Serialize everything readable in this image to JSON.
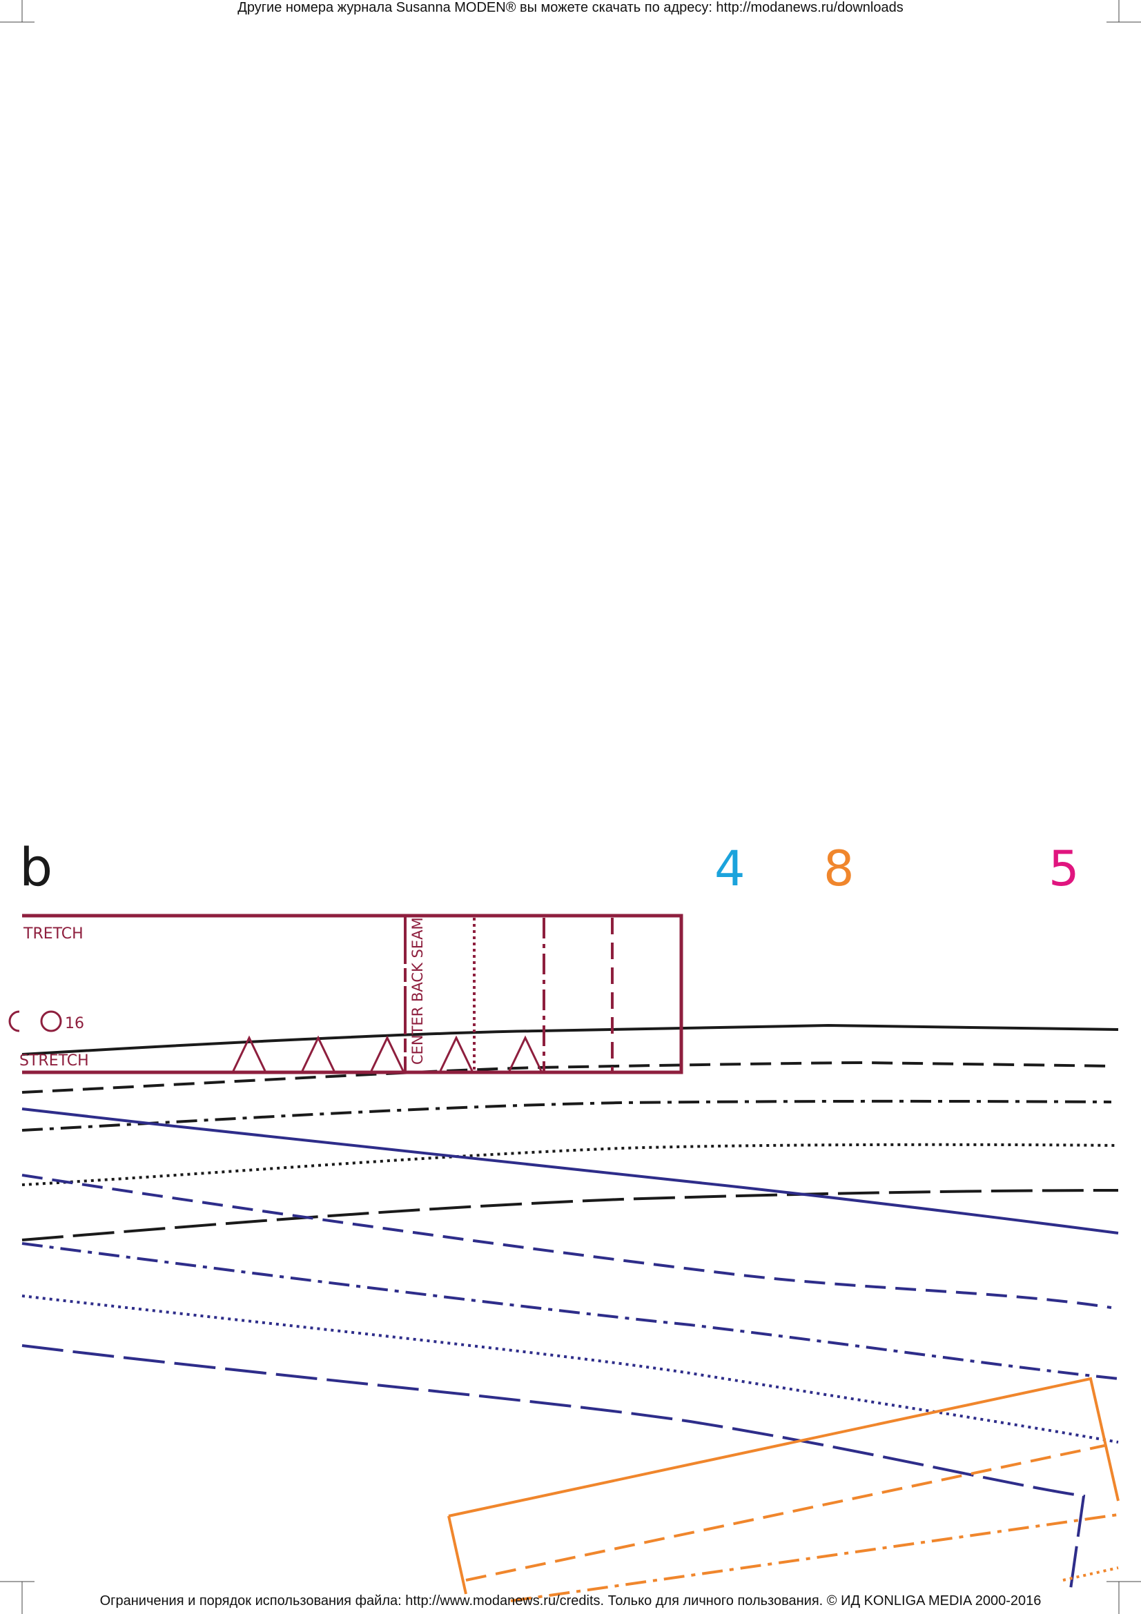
{
  "header_text": "Другие номера журнала Susanna MODEN® вы можете скачать по адресу: http://modanews.ru/downloads",
  "footer_text": "Ограничения и порядок использования файла: http://www.modanews.ru/credits. Только для личного пользования. © ИД KONLIGA MEDIA 2000-2016",
  "section_letter": "b",
  "size_markers": [
    {
      "label": "4",
      "color": "#1ba3dc"
    },
    {
      "label": "8",
      "color": "#f0862c"
    },
    {
      "label": "5",
      "color": "#e0157f"
    }
  ],
  "pattern_piece": {
    "label_top": "TRETCH",
    "label_bottom": "STRETCH",
    "size_label": "16",
    "seam_label": "CENTER BACK SEAM",
    "color": "#8e1f3e"
  },
  "line_colors": {
    "black": "#1a1a1a",
    "blue": "#2e2d8a",
    "orange": "#f0862c"
  }
}
